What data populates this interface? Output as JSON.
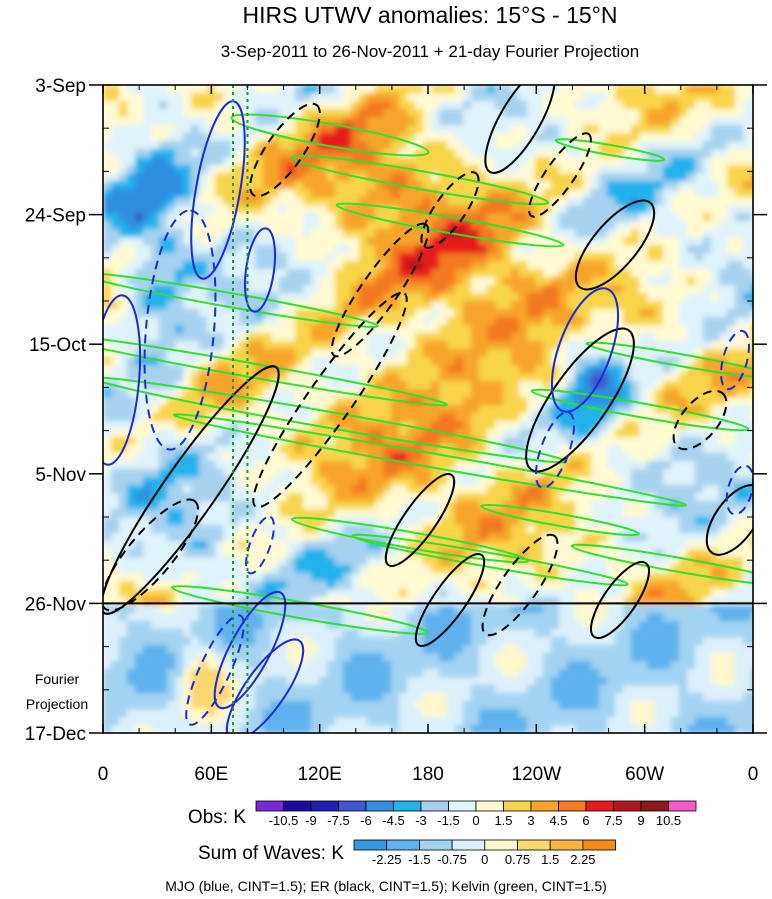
{
  "chart_data": {
    "type": "heatmap",
    "title": "HIRS UTWV anomalies: 15°S - 15°N",
    "subtitle": "3-Sep-2011 to 26-Nov-2011 + 21-day Fourier Projection",
    "x_ticks": [
      "0",
      "60E",
      "120E",
      "180",
      "120W",
      "60W",
      "0"
    ],
    "x_range_deg_east": [
      0,
      360
    ],
    "y_ticks": [
      "3-Sep",
      "24-Sep",
      "15-Oct",
      "5-Nov",
      "26-Nov",
      "17-Dec"
    ],
    "y_range_days": [
      0,
      105
    ],
    "observation_end_day": 84,
    "projection_label": [
      "Fourier",
      "Projection"
    ],
    "reference_longitudes_deg": [
      72,
      80
    ],
    "obs_colorbar": {
      "label": "Obs: K",
      "levels": [
        "-10.5",
        "-9",
        "-7.5",
        "-6",
        "-4.5",
        "-3",
        "-1.5",
        "0",
        "1.5",
        "3",
        "4.5",
        "6",
        "7.5",
        "9",
        "10.5"
      ],
      "colors": [
        "#7a28d8",
        "#1c0a9e",
        "#1f1fb4",
        "#3e58cf",
        "#2f8fe0",
        "#22b2ec",
        "#a6d2ef",
        "#dff3fb",
        "#fffad2",
        "#f8d44a",
        "#f7a52a",
        "#f37a22",
        "#e61a1f",
        "#b0161c",
        "#8c1a1a",
        "#f35cc6"
      ]
    },
    "waves_colorbar": {
      "label": "Sum of Waves: K",
      "levels": [
        "-2.25",
        "-1.5",
        "-0.75",
        "0",
        "0.75",
        "1.5",
        "2.25"
      ],
      "colors": [
        "#3596e2",
        "#5eb2ee",
        "#a2d3f2",
        "#dcf0fb",
        "#fff8cc",
        "#fbd870",
        "#f8b440",
        "#f68a18"
      ]
    },
    "legend_text": "MJO (blue, CINT=1.5); ER (black, CINT=1.5); Kelvin (green, CINT=1.5)",
    "colors": {
      "mjo": "#1a2bd6",
      "er": "#000000",
      "kelvin": "#2fe02f",
      "reference_line": "#1f9a2a"
    }
  }
}
